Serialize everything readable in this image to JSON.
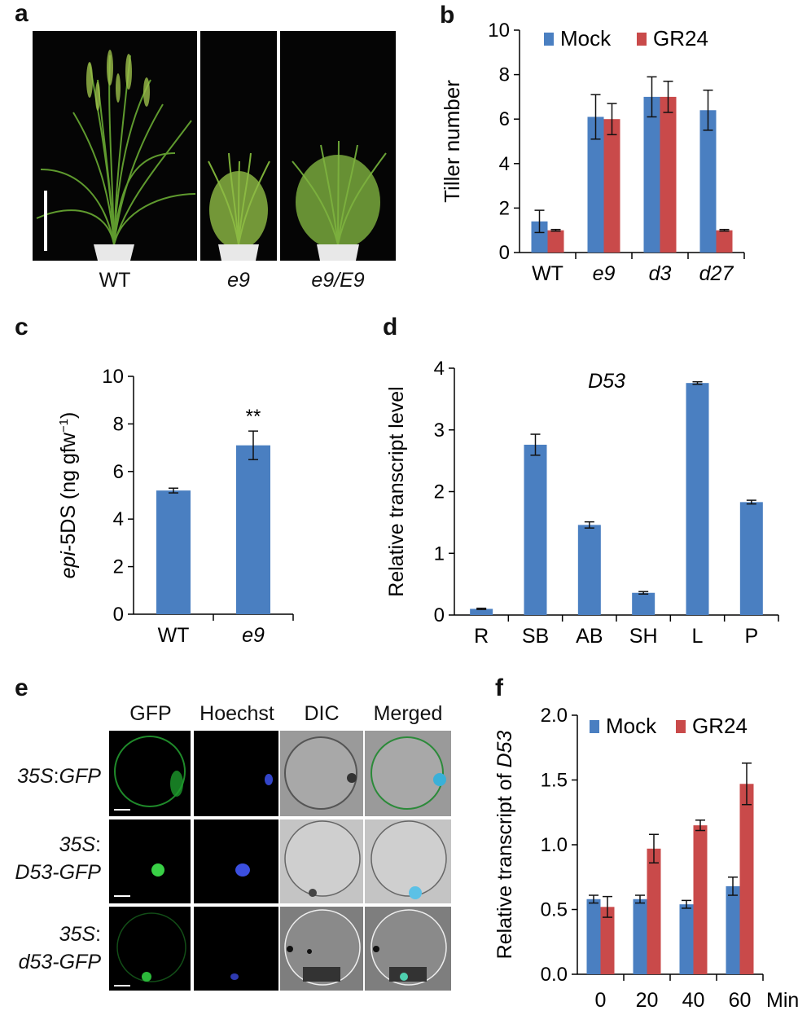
{
  "panel_labels": {
    "a": "a",
    "b": "b",
    "c": "c",
    "d": "d",
    "e": "e",
    "f": "f"
  },
  "colors": {
    "mock": "#4a7fc1",
    "gr24": "#c94a4a",
    "bar": "#4a7fc1"
  },
  "panel_a": {
    "genotypes": [
      "WT",
      "e9",
      "e9/E9"
    ]
  },
  "panel_e": {
    "columns": [
      "GFP",
      "Hoechst",
      "DIC",
      "Merged"
    ],
    "rows": [
      {
        "prefix": "35S",
        "construct": "GFP"
      },
      {
        "prefix": "35S",
        "construct": "D53-GFP"
      },
      {
        "prefix": "35S",
        "construct": "d53-GFP"
      }
    ]
  },
  "chart_data": [
    {
      "panel": "b",
      "type": "bar",
      "ylabel": "Tiller number",
      "ylim": [
        0,
        10
      ],
      "yticks": [
        0,
        2,
        4,
        6,
        8,
        10
      ],
      "categories": [
        "WT",
        "e9",
        "d3",
        "d27"
      ],
      "series": [
        {
          "name": "Mock",
          "values": [
            1.4,
            6.1,
            7.0,
            6.4
          ],
          "errors": [
            0.5,
            1.0,
            0.9,
            0.9
          ]
        },
        {
          "name": "GR24",
          "values": [
            1.0,
            6.0,
            7.0,
            1.0
          ],
          "errors": [
            0.0,
            0.7,
            0.7,
            0.0
          ]
        }
      ],
      "legend": "top"
    },
    {
      "panel": "c",
      "type": "bar",
      "ylabel_italic": "epi",
      "ylabel_rest": "-5DS (ng gfw",
      "ylabel_sup": "−1",
      "ylabel_end": ")",
      "ylim": [
        0,
        10
      ],
      "yticks": [
        0,
        2,
        4,
        6,
        8,
        10
      ],
      "categories": [
        "WT",
        "e9"
      ],
      "values": [
        5.2,
        7.1
      ],
      "errors": [
        0.1,
        0.6
      ],
      "annotations": [
        "",
        "**"
      ]
    },
    {
      "panel": "d",
      "type": "bar",
      "title": "D53",
      "ylabel": "Relative transcript level",
      "ylim": [
        0,
        4
      ],
      "yticks": [
        0,
        1,
        2,
        3,
        4
      ],
      "categories": [
        "R",
        "SB",
        "AB",
        "SH",
        "L",
        "P"
      ],
      "values": [
        0.1,
        2.76,
        1.46,
        0.36,
        3.76,
        1.83
      ],
      "errors": [
        0.01,
        0.17,
        0.05,
        0.02,
        0.02,
        0.03
      ]
    },
    {
      "panel": "f",
      "type": "bar",
      "ylabel_prefix": "Relative transcript of ",
      "ylabel_italic": "D53",
      "ylim": [
        0,
        2.0
      ],
      "yticks": [
        "0.0",
        "0.5",
        "1.0",
        "1.5",
        "2.0"
      ],
      "categories": [
        "0",
        "20",
        "40",
        "60"
      ],
      "x_unit": "Min",
      "series": [
        {
          "name": "Mock",
          "values": [
            0.58,
            0.58,
            0.54,
            0.68
          ],
          "errors": [
            0.03,
            0.03,
            0.03,
            0.07
          ]
        },
        {
          "name": "GR24",
          "values": [
            0.52,
            0.97,
            1.15,
            1.47
          ],
          "errors": [
            0.08,
            0.11,
            0.04,
            0.16
          ]
        }
      ],
      "legend": "top"
    }
  ]
}
